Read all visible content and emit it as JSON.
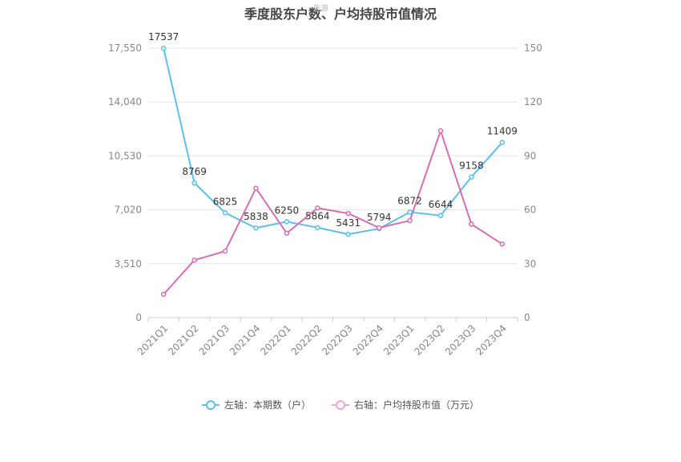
{
  "chart_data": {
    "type": "line",
    "title": "季度股东户数、户均持股市值情况",
    "watermark": "来源",
    "categories": [
      "2021Q1",
      "2021Q2",
      "2021Q3",
      "2021Q4",
      "2022Q1",
      "2022Q2",
      "2022Q3",
      "2022Q4",
      "2023Q1",
      "2023Q2",
      "2023Q3",
      "2023Q4"
    ],
    "left_axis": {
      "min": 0,
      "max": 17550,
      "ticks": [
        "0",
        "3,510",
        "7,020",
        "10,530",
        "14,040",
        "17,550"
      ]
    },
    "right_axis": {
      "min": 0,
      "max": 150,
      "ticks": [
        "0",
        "30",
        "60",
        "90",
        "120",
        "150"
      ]
    },
    "grid": true,
    "legend_position": "bottom",
    "series": [
      {
        "name": "左轴：本期数（户）",
        "axis": "left",
        "color": "#5bc0eb",
        "values": [
          17537,
          8769,
          6825,
          5838,
          6250,
          5864,
          5431,
          5794,
          6872,
          6644,
          9158,
          11409
        ],
        "labels": [
          "17537",
          "8769",
          "6825",
          "5838",
          "6250",
          "5864",
          "5431",
          "5794",
          "6872",
          "6644",
          "9158",
          "11409"
        ]
      },
      {
        "name": "右轴：户均持股市值（万元）",
        "axis": "right",
        "color": "#d96eb4",
        "values": [
          13,
          32,
          37,
          72,
          47,
          61,
          58,
          50,
          54,
          104,
          52,
          41
        ]
      }
    ]
  }
}
